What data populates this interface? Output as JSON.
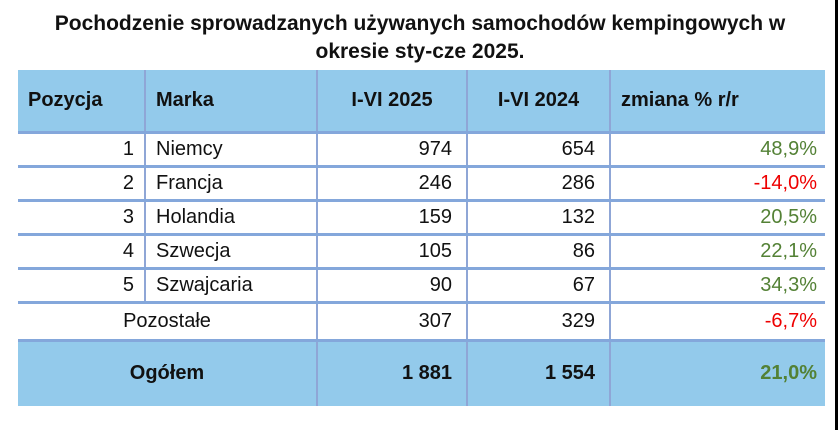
{
  "title_line1": "Pochodzenie sprowadzanych używanych samochodów kempingowych w",
  "title_line2": "okresie sty-cze 2025.",
  "table": {
    "columns": {
      "pos": "Pozycja",
      "marka": "Marka",
      "y2025": "I-VI 2025",
      "y2024": "I-VI 2024",
      "change": "zmiana % r/r"
    },
    "rows": [
      {
        "pos": "1",
        "marka": "Niemcy",
        "y2025": "974",
        "y2024": "654",
        "change": "48,9%",
        "trend": "up"
      },
      {
        "pos": "2",
        "marka": "Francja",
        "y2025": "246",
        "y2024": "286",
        "change": "-14,0%",
        "trend": "down"
      },
      {
        "pos": "3",
        "marka": "Holandia",
        "y2025": "159",
        "y2024": "132",
        "change": "20,5%",
        "trend": "up"
      },
      {
        "pos": "4",
        "marka": "Szwecja",
        "y2025": "105",
        "y2024": "86",
        "change": "22,1%",
        "trend": "up"
      },
      {
        "pos": "5",
        "marka": "Szwajcaria",
        "y2025": "90",
        "y2024": "67",
        "change": "34,3%",
        "trend": "up"
      }
    ],
    "pozostale": {
      "label": "Pozostałe",
      "y2025": "307",
      "y2024": "329",
      "change": "-6,7%",
      "trend": "down"
    },
    "total": {
      "label": "Ogółem",
      "y2025": "1 881",
      "y2024": "1 554",
      "change": "21,0%",
      "trend": "up"
    }
  },
  "colors": {
    "header_fill": "#93CAEB",
    "row_border": "#84A7DB",
    "column_divider": "#8FA6D6",
    "positive_change": "#538135",
    "negative_change": "#EE0000"
  },
  "chart_data": {
    "type": "table",
    "title": "Pochodzenie sprowadzanych używanych samochodów kempingowych w okresie sty-cze 2025.",
    "columns": [
      "Pozycja",
      "Marka",
      "I-VI 2025",
      "I-VI 2024",
      "zmiana % r/r"
    ],
    "rows": [
      [
        1,
        "Niemcy",
        974,
        654,
        "48,9%"
      ],
      [
        2,
        "Francja",
        246,
        286,
        "-14,0%"
      ],
      [
        3,
        "Holandia",
        159,
        132,
        "20,5%"
      ],
      [
        4,
        "Szwecja",
        105,
        86,
        "22,1%"
      ],
      [
        5,
        "Szwajcaria",
        90,
        67,
        "34,3%"
      ],
      [
        "",
        "Pozostałe",
        307,
        329,
        "-6,7%"
      ],
      [
        "",
        "Ogółem",
        1881,
        1554,
        "21,0%"
      ]
    ]
  }
}
